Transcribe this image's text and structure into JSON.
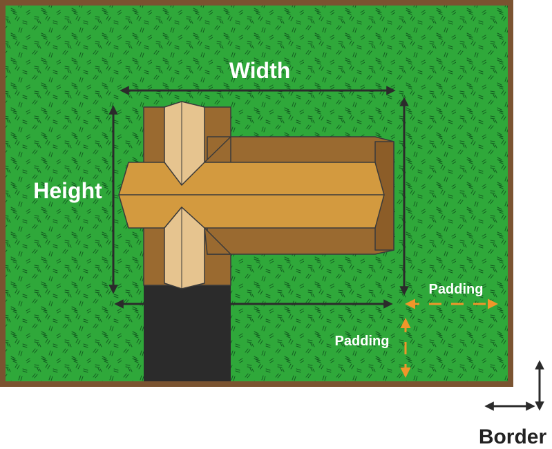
{
  "labels": {
    "width": "Width",
    "height": "Height",
    "padding_right": "Padding",
    "padding_bottom": "Padding",
    "border": "Border"
  },
  "colors": {
    "border_brown": "#7a5330",
    "grass": "#2fa83a",
    "grass_texture": "#0c4d1a",
    "wood_dark": "#9a6a30",
    "wood_mid": "#d39a3f",
    "wood_light": "#e6c48f",
    "shadow": "#2b2b2b",
    "dimension_arrow": "#2b2b2b",
    "padding_arrow": "#f0962a",
    "label_white": "#ffffff",
    "label_dark": "#222222"
  },
  "icons": {
    "dimension": "double-headed-arrow",
    "padding": "orange-double-headed-arrow",
    "border": "black-double-headed-arrow",
    "subject": "wooden-log-junction"
  }
}
